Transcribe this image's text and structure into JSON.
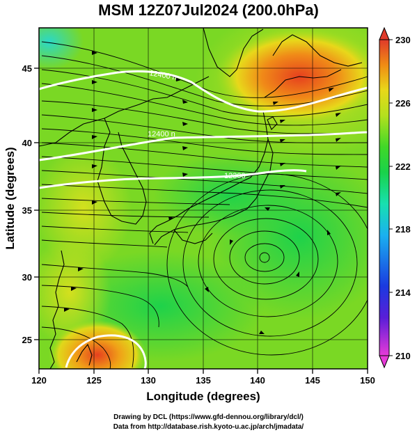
{
  "title": "MSM 12Z07Jul2024 (200.0hPa)",
  "x_axis": {
    "label": "Longitude (degrees)",
    "range": [
      120,
      150
    ],
    "ticks": [
      "120",
      "125",
      "130",
      "135",
      "140",
      "145",
      "150"
    ]
  },
  "y_axis": {
    "label": "Latitude  (degrees)",
    "range": [
      22.5,
      47.8
    ],
    "ticks": [
      "25",
      "30",
      "35",
      "40",
      "45"
    ]
  },
  "colorbar": {
    "range": [
      210,
      230
    ],
    "ticks": [
      "230",
      "226",
      "222",
      "218",
      "214",
      "210"
    ],
    "colors": [
      "#e63ad8",
      "#2a2ad8",
      "#1a9cf0",
      "#18e0c8",
      "#19d24a",
      "#6ad81e",
      "#c8e61e",
      "#f0c814",
      "#f07814",
      "#e03a2a"
    ]
  },
  "contours": [
    {
      "label": "12400 n",
      "color": "#ffffff"
    },
    {
      "label": "12400 n",
      "color": "#ffffff"
    },
    {
      "label": "12300",
      "color": "#ffffff"
    }
  ],
  "credits": {
    "line1": "Drawing by DCL (https://www.gfd-dennou.org/library/dcl/)",
    "line2": "Data from http://database.rish.kyoto-u.ac.jp/arch/jmadata/"
  }
}
